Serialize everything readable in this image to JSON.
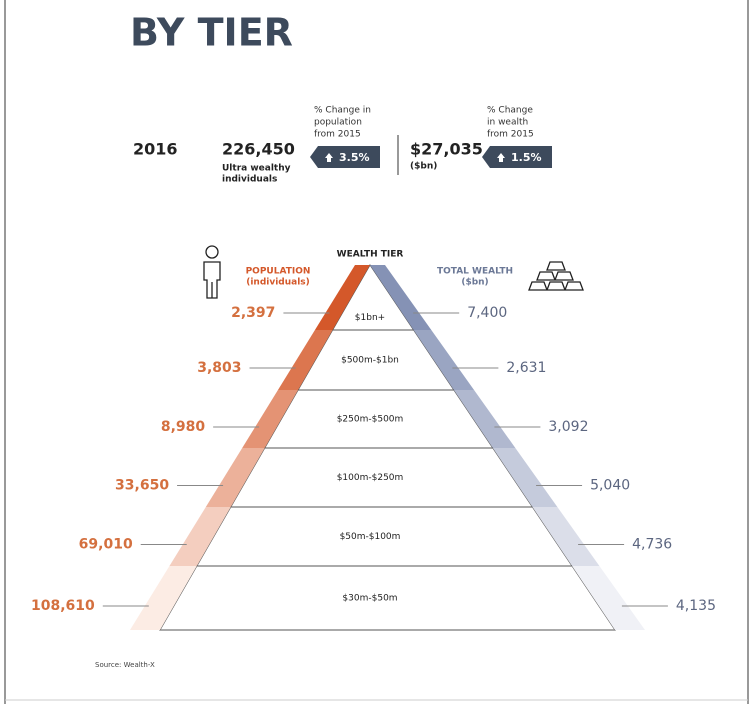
{
  "title": "BY TIER",
  "summary": {
    "year": "2016",
    "population": {
      "value": "226,450",
      "label": [
        "Ultra wealthy",
        "individuals"
      ],
      "change_label": [
        "% Change in",
        "population",
        "from 2015"
      ],
      "change": "3.5%"
    },
    "wealth": {
      "value": "$27,035",
      "label": [
        "($bn)"
      ],
      "change_label": [
        "% Change",
        "in wealth",
        "from 2015"
      ],
      "change": "1.5%"
    }
  },
  "pyramid": {
    "header": "WEALTH TIER",
    "left_label": [
      "POPULATION",
      "(individuals)"
    ],
    "right_label": [
      "TOTAL WEALTH",
      "($bn)"
    ],
    "tiers": [
      {
        "name": "$1bn+",
        "population": "2,397",
        "wealth": "7,400"
      },
      {
        "name": "$500m-$1bn",
        "population": "3,803",
        "wealth": "2,631"
      },
      {
        "name": "$250m-$500m",
        "population": "8,980",
        "wealth": "3,092"
      },
      {
        "name": "$100m-$250m",
        "population": "33,650",
        "wealth": "5,040"
      },
      {
        "name": "$50m-$100m",
        "population": "69,010",
        "wealth": "4,736"
      },
      {
        "name": "$30m-$50m",
        "population": "108,610",
        "wealth": "4,135"
      }
    ]
  },
  "source": "Source: Wealth-X"
}
